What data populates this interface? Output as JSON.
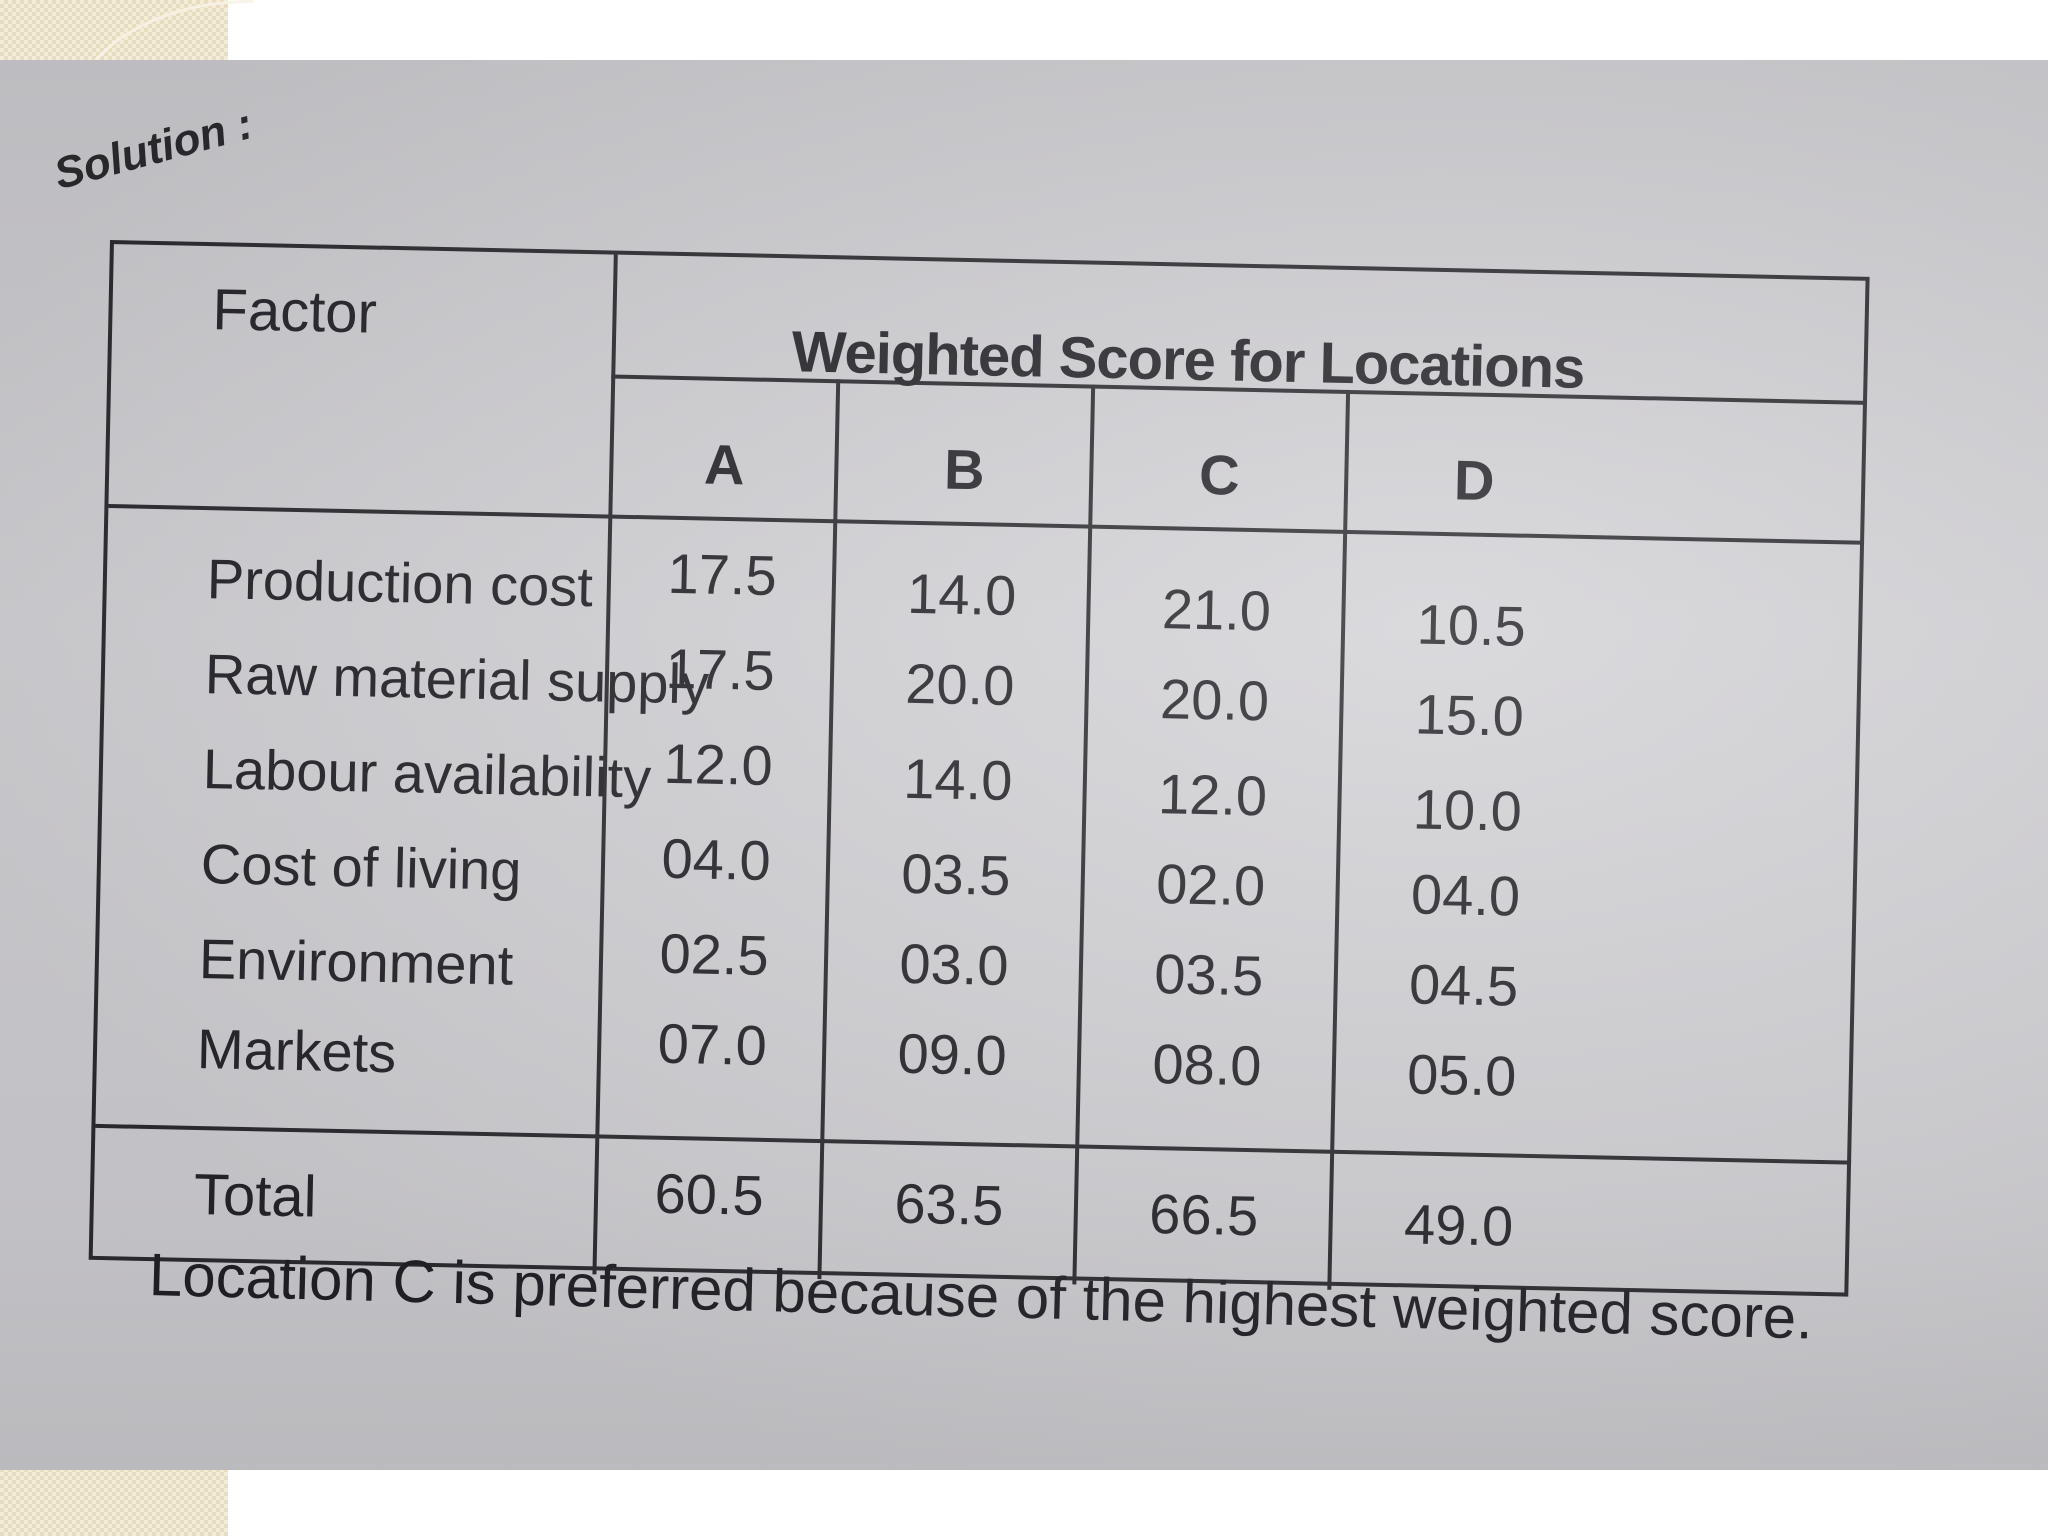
{
  "solution_label": "Solution :",
  "table": {
    "factor_header": "Factor",
    "group_header": "Weighted Score for Locations",
    "columns": [
      "A",
      "B",
      "C",
      "D"
    ],
    "rows": [
      {
        "factor": "Production cost",
        "values": [
          "17.5",
          "14.0",
          "21.0",
          "10.5"
        ]
      },
      {
        "factor": "Raw material supply",
        "values": [
          "17.5",
          "20.0",
          "20.0",
          "15.0"
        ]
      },
      {
        "factor": "Labour availability",
        "values": [
          "12.0",
          "14.0",
          "12.0",
          "10.0"
        ]
      },
      {
        "factor": "Cost of living",
        "values": [
          "04.0",
          "03.5",
          "02.0",
          "04.0"
        ]
      },
      {
        "factor": "Environment",
        "values": [
          "02.5",
          "03.0",
          "03.5",
          "04.5"
        ]
      },
      {
        "factor": "Markets",
        "values": [
          "07.0",
          "09.0",
          "08.0",
          "05.0"
        ]
      }
    ],
    "total": {
      "factor": "Total",
      "values": [
        "60.5",
        "63.5",
        "66.5",
        "49.0"
      ]
    }
  },
  "conclusion": "Location C is preferred because of the highest weighted score."
}
